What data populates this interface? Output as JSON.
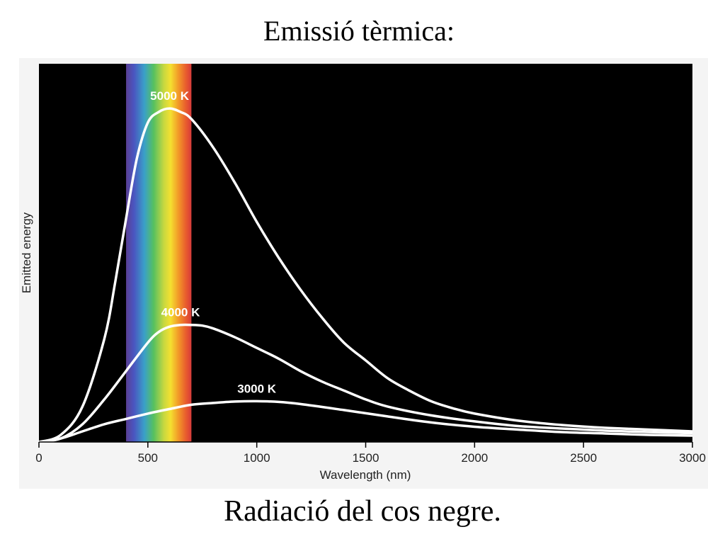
{
  "slide": {
    "title": "Emissió tèrmica:",
    "caption": "Radiació del cos negre."
  },
  "chart_data": {
    "type": "line",
    "title": "",
    "xlabel": "Wavelength (nm)",
    "ylabel": "Emitted energy",
    "xlim": [
      0,
      3000
    ],
    "ylim": [
      0,
      1
    ],
    "x_ticks": [
      0,
      500,
      1000,
      1500,
      2000,
      2500,
      3000
    ],
    "y_ticks": [],
    "grid": false,
    "background": "#000000",
    "line_color": "#ffffff",
    "visible_band": {
      "start": 400,
      "end": 700
    },
    "series": [
      {
        "name": "5000 K",
        "x": [
          0,
          100,
          200,
          300,
          350,
          400,
          450,
          500,
          550,
          600,
          650,
          700,
          800,
          900,
          1000,
          1100,
          1200,
          1300,
          1400,
          1500,
          1600,
          1700,
          1800,
          1900,
          2000,
          2200,
          2400,
          2600,
          2800,
          3000
        ],
        "y": [
          0.0,
          0.02,
          0.1,
          0.29,
          0.45,
          0.63,
          0.8,
          0.9,
          0.93,
          0.94,
          0.93,
          0.91,
          0.83,
          0.73,
          0.62,
          0.52,
          0.43,
          0.35,
          0.28,
          0.23,
          0.18,
          0.145,
          0.115,
          0.095,
          0.08,
          0.06,
          0.048,
          0.04,
          0.035,
          0.03
        ]
      },
      {
        "name": "4000 K",
        "x": [
          0,
          100,
          200,
          300,
          400,
          500,
          550,
          600,
          650,
          700,
          750,
          800,
          900,
          1000,
          1100,
          1200,
          1300,
          1400,
          1500,
          1600,
          1800,
          2000,
          2200,
          2400,
          2600,
          2800,
          3000
        ],
        "y": [
          0.0,
          0.01,
          0.05,
          0.12,
          0.2,
          0.28,
          0.31,
          0.325,
          0.33,
          0.33,
          0.328,
          0.32,
          0.295,
          0.265,
          0.235,
          0.2,
          0.17,
          0.145,
          0.12,
          0.1,
          0.075,
          0.058,
          0.045,
          0.038,
          0.032,
          0.028,
          0.025
        ]
      },
      {
        "name": "3000 K",
        "x": [
          0,
          100,
          200,
          300,
          400,
          500,
          600,
          700,
          800,
          900,
          1000,
          1100,
          1200,
          1400,
          1600,
          1800,
          2000,
          2200,
          2400,
          2600,
          2800,
          3000
        ],
        "y": [
          0.0,
          0.01,
          0.03,
          0.05,
          0.065,
          0.08,
          0.093,
          0.105,
          0.11,
          0.114,
          0.115,
          0.113,
          0.107,
          0.09,
          0.072,
          0.055,
          0.043,
          0.035,
          0.028,
          0.024,
          0.02,
          0.018
        ]
      }
    ]
  }
}
